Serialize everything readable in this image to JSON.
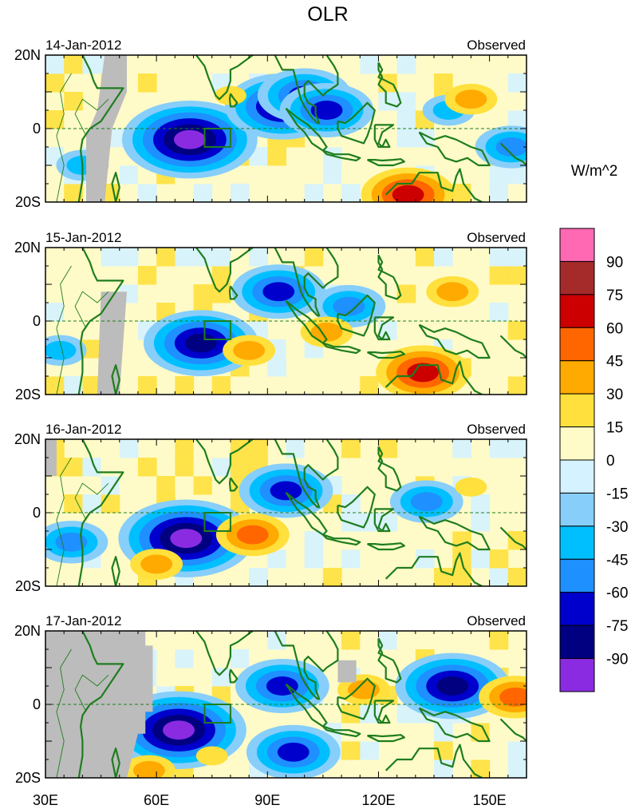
{
  "chart_data": {
    "type": "heatmap",
    "title": "OLR",
    "units": "W/m^2",
    "x_axis": {
      "range": [
        30,
        160
      ],
      "ticks": [
        30,
        60,
        90,
        120,
        150
      ],
      "tick_labels": [
        "30E",
        "60E",
        "90E",
        "120E",
        "150E"
      ]
    },
    "y_axis": {
      "range": [
        -20,
        20
      ],
      "ticks": [
        20,
        0,
        -20
      ],
      "tick_labels": [
        "20N",
        "0",
        "20S"
      ]
    },
    "colorbar": {
      "colors": [
        "#8a2be2",
        "#000080",
        "#0000cd",
        "#1e90ff",
        "#00bfff",
        "#87cefa",
        "#d4f2ff",
        "#fffbc8",
        "#ffe03c",
        "#ffaa00",
        "#ff6600",
        "#cc0000",
        "#a52a2a",
        "#ff69b4"
      ],
      "labels": [
        "-90",
        "-75",
        "-60",
        "-45",
        "-30",
        "-15",
        "0",
        "15",
        "30",
        "45",
        "60",
        "75",
        "90"
      ]
    },
    "box_region": {
      "lon": [
        73,
        80
      ],
      "lat": [
        -5,
        0
      ]
    },
    "panels": [
      {
        "date": "14-Jan-2012",
        "label": "Observed",
        "anomalies": [
          {
            "lon": 69,
            "lat": -3,
            "value": -90
          },
          {
            "lon": 94,
            "lat": 6,
            "value": -80
          },
          {
            "lon": 100,
            "lat": 9,
            "value": -70
          },
          {
            "lon": 106,
            "lat": 5,
            "value": -60
          },
          {
            "lon": 40,
            "lat": -10,
            "value": -40
          },
          {
            "lon": 139,
            "lat": 5,
            "value": -40
          },
          {
            "lon": 156,
            "lat": -5,
            "value": -55
          },
          {
            "lon": 128,
            "lat": -18,
            "value": 60
          },
          {
            "lon": 145,
            "lat": 8,
            "value": 35
          },
          {
            "lon": 80,
            "lat": 9,
            "value": 20
          }
        ]
      },
      {
        "date": "15-Jan-2012",
        "label": "Observed",
        "anomalies": [
          {
            "lon": 72,
            "lat": -6,
            "value": -85
          },
          {
            "lon": 93,
            "lat": 8,
            "value": -65
          },
          {
            "lon": 112,
            "lat": 4,
            "value": -50
          },
          {
            "lon": 34,
            "lat": -8,
            "value": -40
          },
          {
            "lon": 132,
            "lat": -14,
            "value": 65
          },
          {
            "lon": 106,
            "lat": -3,
            "value": 40
          },
          {
            "lon": 140,
            "lat": 8,
            "value": 35
          },
          {
            "lon": 85,
            "lat": -8,
            "value": 30
          }
        ]
      },
      {
        "date": "16-Jan-2012",
        "label": "Observed",
        "anomalies": [
          {
            "lon": 68,
            "lat": -7,
            "value": -90
          },
          {
            "lon": 95,
            "lat": 6,
            "value": -70
          },
          {
            "lon": 133,
            "lat": 3,
            "value": -50
          },
          {
            "lon": 37,
            "lat": -8,
            "value": -45
          },
          {
            "lon": 86,
            "lat": -6,
            "value": 45
          },
          {
            "lon": 60,
            "lat": -14,
            "value": 35
          },
          {
            "lon": 145,
            "lat": 7,
            "value": 25
          }
        ]
      },
      {
        "date": "17-Jan-2012",
        "label": "Observed",
        "anomalies": [
          {
            "lon": 66,
            "lat": -7,
            "value": -90
          },
          {
            "lon": 97,
            "lat": -13,
            "value": -65
          },
          {
            "lon": 140,
            "lat": 5,
            "value": -80
          },
          {
            "lon": 94,
            "lat": 5,
            "value": -60
          },
          {
            "lon": 157,
            "lat": 2,
            "value": 55
          },
          {
            "lon": 116,
            "lat": 4,
            "value": 40
          },
          {
            "lon": 58,
            "lat": -18,
            "value": 35
          },
          {
            "lon": 75,
            "lat": -14,
            "value": 25
          }
        ]
      }
    ]
  }
}
